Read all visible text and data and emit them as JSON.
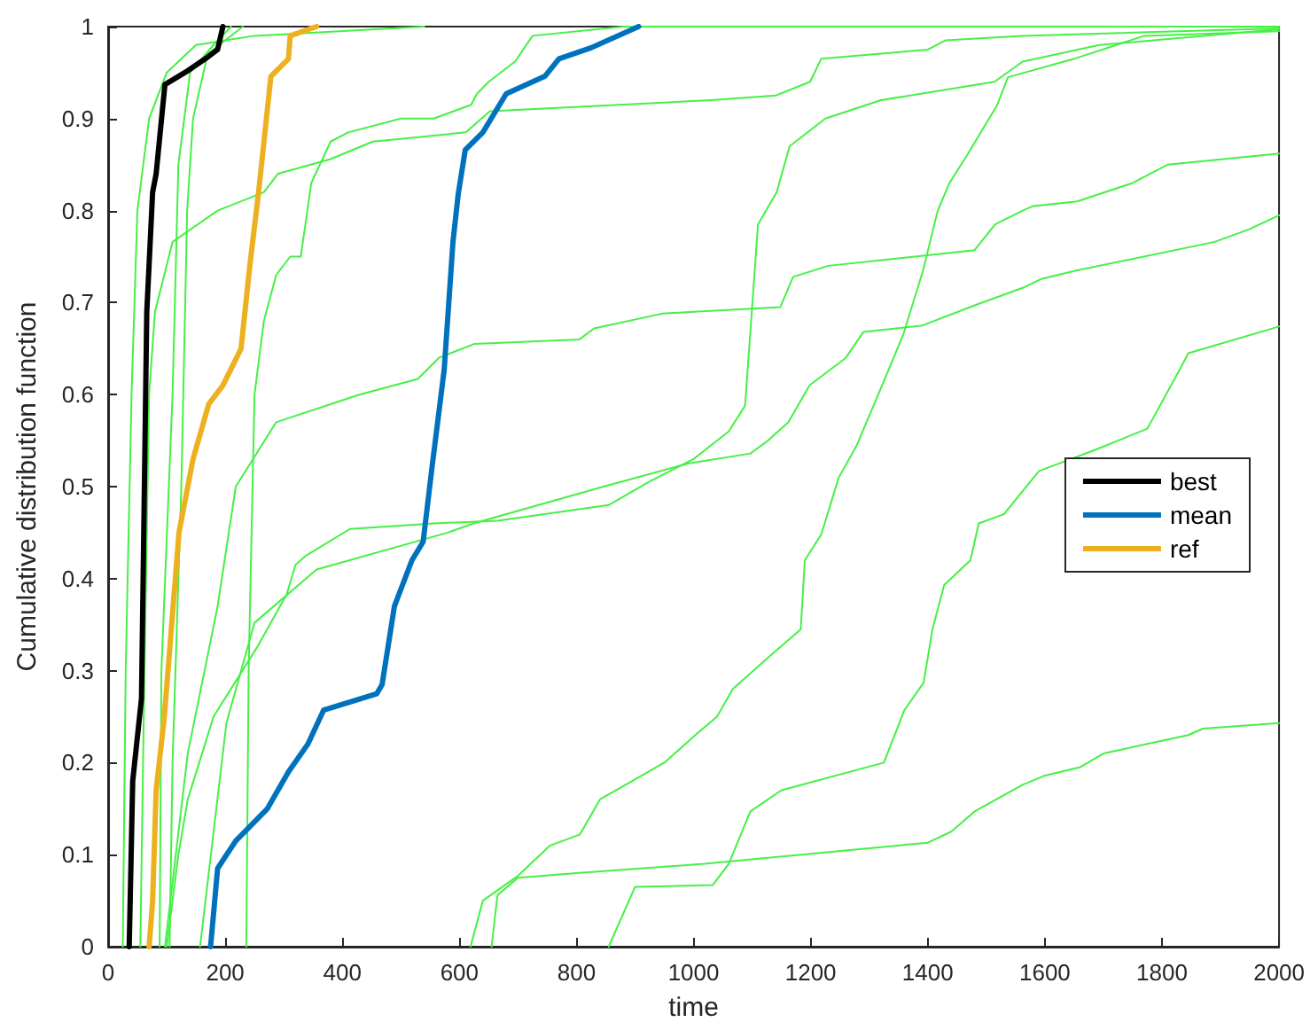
{
  "chart_data": {
    "type": "line",
    "xlabel": "time",
    "ylabel": "Cumulative distribution function",
    "xlim": [
      0,
      2000
    ],
    "xticks": [
      0,
      200,
      400,
      600,
      800,
      1000,
      1200,
      1400,
      1600,
      1800,
      2000
    ],
    "ylim": [
      0,
      1
    ],
    "yticks": [
      0,
      0.1,
      0.2,
      0.3,
      0.4,
      0.5,
      0.6,
      0.7,
      0.8,
      0.9,
      1
    ],
    "grid": false,
    "legend": "right",
    "marker": "none",
    "series": [
      {
        "color": "#45f045",
        "x": [
          25,
          30,
          40,
          50,
          70,
          100,
          150,
          250,
          540
        ],
        "values": [
          0,
          0.3,
          0.6,
          0.8,
          0.9,
          0.95,
          0.98,
          0.99,
          1
        ]
      },
      {
        "color": "#45f045",
        "x": [
          88,
          91,
          110,
          120,
          140,
          180,
          210
        ],
        "values": [
          0,
          0.3,
          0.6,
          0.85,
          0.95,
          0.98,
          1
        ]
      },
      {
        "color": "#45f045",
        "x": [
          105,
          110,
          125,
          135,
          145,
          170,
          230
        ],
        "values": [
          0,
          0.2,
          0.5,
          0.8,
          0.9,
          0.97,
          1
        ]
      },
      {
        "color": "#45f045",
        "x": [
          97,
          136,
          187,
          218,
          287,
          429,
          529,
          565,
          625,
          805,
          830,
          946,
          1000,
          1148,
          1170,
          1230,
          1480,
          1515,
          1562,
          1580,
          1655,
          1750,
          1810,
          1890,
          2000
        ],
        "values": [
          0,
          0.21,
          0.37,
          0.5,
          0.57,
          0.6,
          0.617,
          0.64,
          0.655,
          0.66,
          0.672,
          0.688,
          0.69,
          0.695,
          0.728,
          0.74,
          0.757,
          0.785,
          0.8,
          0.805,
          0.81,
          0.83,
          0.85,
          0.855,
          0.862
        ]
      },
      {
        "color": "#45f045",
        "x": [
          236,
          240,
          250,
          266,
          287,
          311,
          329,
          347,
          380,
          410,
          500,
          556,
          590,
          620,
          630,
          650,
          695,
          725,
          880,
          2000
        ],
        "values": [
          0,
          0.3,
          0.6,
          0.68,
          0.73,
          0.75,
          0.75,
          0.83,
          0.875,
          0.885,
          0.9,
          0.9,
          0.908,
          0.915,
          0.927,
          0.94,
          0.962,
          0.99,
          1,
          1
        ]
      },
      {
        "color": "#45f045",
        "x": [
          55,
          62,
          70,
          80,
          110,
          187,
          266,
          290,
          380,
          452,
          611,
          652,
          1030,
          1140,
          1199,
          1218,
          1400,
          1430,
          1562,
          2000
        ],
        "values": [
          0,
          0.3,
          0.6,
          0.69,
          0.766,
          0.8,
          0.82,
          0.84,
          0.856,
          0.875,
          0.885,
          0.908,
          0.92,
          0.925,
          0.94,
          0.965,
          0.975,
          0.985,
          0.99,
          0.998
        ]
      },
      {
        "color": "#45f045",
        "x": [
          100,
          120,
          136,
          180,
          254,
          305,
          320,
          338,
          413,
          556,
          665,
          855,
          923,
          1000,
          1060,
          1088,
          1110,
          1142,
          1164,
          1225,
          1320,
          1514,
          1562,
          1693,
          2000
        ],
        "values": [
          0,
          0.1,
          0.16,
          0.25,
          0.325,
          0.383,
          0.415,
          0.425,
          0.454,
          0.46,
          0.463,
          0.48,
          0.505,
          0.53,
          0.56,
          0.588,
          0.785,
          0.82,
          0.87,
          0.9,
          0.92,
          0.94,
          0.962,
          0.98,
          0.997
        ]
      },
      {
        "color": "#45f045",
        "x": [
          157,
          202,
          250,
          356,
          580,
          624,
          846,
          990,
          1097,
          1127,
          1162,
          1198,
          1260,
          1290,
          1390,
          1480,
          1562,
          1595,
          1655,
          1890,
          1950,
          2000
        ],
        "values": [
          0,
          0.243,
          0.352,
          0.41,
          0.45,
          0.46,
          0.5,
          0.525,
          0.536,
          0.55,
          0.57,
          0.61,
          0.64,
          0.668,
          0.675,
          0.697,
          0.716,
          0.726,
          0.735,
          0.766,
          0.78,
          0.795
        ]
      },
      {
        "color": "#45f045",
        "x": [
          619,
          640,
          700,
          755,
          806,
          840,
          950,
          1003,
          1040,
          1067,
          1127,
          1183,
          1190,
          1218,
          1248,
          1278,
          1320,
          1358,
          1392,
          1417,
          1437,
          1467,
          1518,
          1537,
          1650,
          1770,
          2000
        ],
        "values": [
          0,
          0.05,
          0.077,
          0.11,
          0.122,
          0.16,
          0.2,
          0.23,
          0.25,
          0.28,
          0.314,
          0.345,
          0.42,
          0.448,
          0.51,
          0.544,
          0.607,
          0.665,
          0.735,
          0.8,
          0.83,
          0.86,
          0.914,
          0.945,
          0.965,
          0.99,
          0.995
        ]
      },
      {
        "color": "#45f045",
        "x": [
          855,
          900,
          1033,
          1060,
          1097,
          1150,
          1325,
          1360,
          1393,
          1408,
          1428,
          1473,
          1487,
          1530,
          1590,
          1686,
          1775,
          1830,
          1845,
          2000
        ],
        "values": [
          0,
          0.065,
          0.067,
          0.09,
          0.147,
          0.17,
          0.2,
          0.257,
          0.287,
          0.345,
          0.393,
          0.42,
          0.46,
          0.47,
          0.517,
          0.54,
          0.563,
          0.627,
          0.645,
          0.674
        ]
      },
      {
        "color": "#45f045",
        "x": [
          655,
          665,
          700,
          800,
          1018,
          1400,
          1440,
          1480,
          1562,
          1600,
          1660,
          1700,
          1845,
          1870,
          2000
        ],
        "values": [
          0,
          0.056,
          0.075,
          0.08,
          0.09,
          0.113,
          0.125,
          0.147,
          0.176,
          0.186,
          0.195,
          0.21,
          0.23,
          0.237,
          0.243
        ]
      },
      {
        "name": "best",
        "color": "#000000",
        "x": [
          36,
          42,
          57,
          66,
          76,
          82,
          97,
          136,
          166,
          187,
          196
        ],
        "values": [
          0,
          0.18,
          0.27,
          0.69,
          0.82,
          0.84,
          0.937,
          0.952,
          0.965,
          0.975,
          1
        ]
      },
      {
        "name": "mean",
        "color": "#0072bd",
        "x": [
          175,
          187,
          218,
          272,
          308,
          341,
          368,
          459,
          468,
          489,
          519,
          538,
          553,
          574,
          589,
          598,
          610,
          640,
          680,
          746,
          770,
          825,
          906
        ],
        "values": [
          0,
          0.085,
          0.115,
          0.15,
          0.19,
          0.22,
          0.257,
          0.275,
          0.285,
          0.37,
          0.42,
          0.44,
          0.52,
          0.627,
          0.766,
          0.818,
          0.866,
          0.885,
          0.927,
          0.946,
          0.965,
          0.977,
          1
        ]
      },
      {
        "name": "ref",
        "color": "#edb120",
        "x": [
          70,
          76,
          82,
          96,
          121,
          145,
          172,
          196,
          227,
          242,
          257,
          278,
          308,
          311,
          356
        ],
        "values": [
          0,
          0.05,
          0.17,
          0.25,
          0.45,
          0.53,
          0.59,
          0.61,
          0.65,
          0.74,
          0.82,
          0.946,
          0.965,
          0.99,
          1
        ]
      }
    ]
  }
}
